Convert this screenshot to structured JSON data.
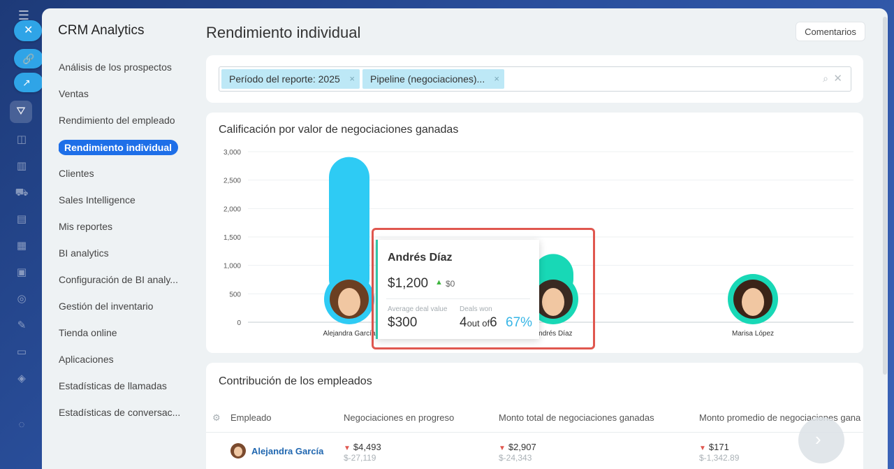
{
  "rail": {
    "close_glyph": "✕",
    "link_glyph": "🔗",
    "open_glyph": "↗"
  },
  "sidebar": {
    "title": "CRM Analytics",
    "items": [
      {
        "label": "Análisis de los prospectos"
      },
      {
        "label": "Ventas"
      },
      {
        "label": "Rendimiento del empleado"
      },
      {
        "label": "Rendimiento individual",
        "active": true
      },
      {
        "label": "Clientes"
      },
      {
        "label": "Sales Intelligence"
      },
      {
        "label": "Mis reportes"
      },
      {
        "label": "BI analytics"
      },
      {
        "label": "Configuración de BI analy..."
      },
      {
        "label": "Gestión del inventario"
      },
      {
        "label": "Tienda online"
      },
      {
        "label": "Aplicaciones"
      },
      {
        "label": "Estadísticas de llamadas"
      },
      {
        "label": "Estadísticas de conversac..."
      }
    ]
  },
  "header": {
    "title": "Rendimiento individual",
    "comments_label": "Comentarios"
  },
  "filters": {
    "chips": [
      {
        "label": "Período del reporte: 2025"
      },
      {
        "label": "Pipeline (negociaciones)..."
      }
    ],
    "remove_glyph": "×",
    "search_glyph": "⌕",
    "clear_glyph": "✕"
  },
  "chart": {
    "title": "Calificación por valor de negociaciones ganadas"
  },
  "chart_data": {
    "type": "bar",
    "title": "Calificación por valor de negociaciones ganadas",
    "yticks": [
      "0",
      "500",
      "1,000",
      "1,500",
      "2,000",
      "2,500",
      "3,000"
    ],
    "ylim": [
      0,
      3000
    ],
    "categories": [
      "Alejandra García",
      "Andrés Díaz",
      "Marisa López"
    ],
    "values": [
      2907,
      1200,
      171
    ],
    "colors": [
      "#2ecbf4",
      "#18d8b6",
      "#18d8b6"
    ],
    "grid": true
  },
  "tooltip": {
    "name": "Andrés Díaz",
    "amount": "$1,200",
    "delta": "$0",
    "avg_label": "Average deal value",
    "avg_value": "$300",
    "deals_label": "Deals won",
    "deals_won": "4",
    "deals_mid": "out of",
    "deals_total": "6",
    "pct": "67%"
  },
  "contrib": {
    "title": "Contribución de los empleados",
    "columns": [
      "Empleado",
      "Negociaciones en progreso",
      "Monto total de negociaciones ganadas",
      "Monto promedio de negociaciones gana"
    ],
    "rows": [
      {
        "name": "Alejandra García",
        "in_progress": "$4,493",
        "in_progress_sub": "$-27,119",
        "total_won": "$2,907",
        "total_won_sub": "$-24,343",
        "avg_won": "$171",
        "avg_won_sub": "$-1,342.89"
      }
    ]
  }
}
